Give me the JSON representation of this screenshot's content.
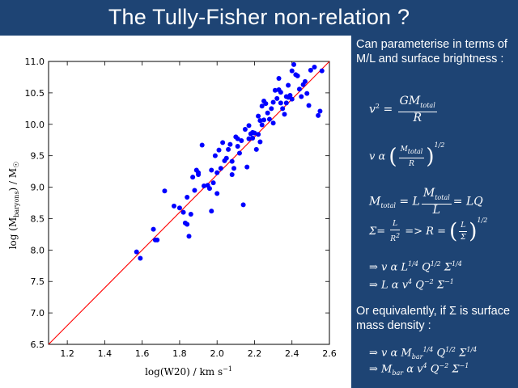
{
  "slide": {
    "title": "The Tully-Fisher non-relation ?"
  },
  "text": {
    "intro": "Can parameterise in terms of M/L and surface brightness :",
    "or_equiv": "Or equivalently, if Σ is surface mass density :"
  },
  "equations": {
    "eq1_lhs": "v",
    "eq1_num": "GM",
    "eq1_num_sub": "total",
    "eq1_den": "R",
    "eq2_lhs": "v α",
    "eq2_num": "M",
    "eq2_num_sub": "total",
    "eq2_den": "R",
    "eq2_exp_num": "1",
    "eq2_exp_den": "2",
    "eq3_lhs": "M",
    "eq3_lhs_sub": "total",
    "eq3_mid": "= L",
    "eq3_num": "M",
    "eq3_num_sub": "total",
    "eq3_den": "L",
    "eq3_rhs": "= LQ",
    "eq4_lhs": "Σ=",
    "eq4_num": "L",
    "eq4_den": "R",
    "eq4_mid": "=> R =",
    "eq4_inner_num": "L",
    "eq4_inner_den": "Σ",
    "eq4_exp_num": "1",
    "eq4_exp_den": "2",
    "eq5": "⇒ v α L",
    "eq5_L_exp": "1/4",
    "eq5_Q": "Q",
    "eq5_Q_exp": "1/2",
    "eq5_S": "Σ",
    "eq5_S_exp": "1/4",
    "eq6": "⇒ L α v",
    "eq6_v_exp": "4",
    "eq6_Q": "Q",
    "eq6_Q_exp": "−2",
    "eq6_S": "Σ",
    "eq6_S_exp": "−1",
    "eq7": "⇒ v α M",
    "eq7_sub": "bar",
    "eq7_M_exp": "1/4",
    "eq7_Q": "Q",
    "eq7_Q_exp": "1/2",
    "eq7_S": "Σ",
    "eq7_S_exp": "1/4",
    "eq8": "⇒  M",
    "eq8_sub": "bar",
    "eq8_mid": "α v",
    "eq8_v_exp": "4",
    "eq8_Q": "Q",
    "eq8_Q_exp": "−2",
    "eq8_S": "Σ",
    "eq8_S_exp": "−1"
  },
  "colors": {
    "background": "#1e4474",
    "points": "#0000ff",
    "fit_line": "#ff0000"
  },
  "chart_data": {
    "type": "scatter",
    "title": "",
    "xlabel": "log(W20) / km s⁻¹",
    "ylabel": "log (M_baryons) / M_☉",
    "xlim": [
      1.1,
      2.6
    ],
    "ylim": [
      6.5,
      11.0
    ],
    "xticks": [
      "1.2",
      "1.4",
      "1.6",
      "1.8",
      "2.0",
      "2.2",
      "2.4",
      "2.6"
    ],
    "yticks": [
      "6.5",
      "7.0",
      "7.5",
      "8.0",
      "8.5",
      "9.0",
      "9.5",
      "10.0",
      "10.5",
      "11.0"
    ],
    "fit_line": {
      "x": [
        1.1,
        2.6
      ],
      "y": [
        6.5,
        11.0
      ]
    },
    "points": {
      "x": [
        1.57,
        1.59,
        1.66,
        1.67,
        1.68,
        1.72,
        1.77,
        1.8,
        1.82,
        1.83,
        1.84,
        1.84,
        1.85,
        1.86,
        1.87,
        1.88,
        1.89,
        1.9,
        1.9,
        1.92,
        1.93,
        1.95,
        1.96,
        1.97,
        1.97,
        1.98,
        1.99,
        2.0,
        2.0,
        2.01,
        2.02,
        2.03,
        2.04,
        2.05,
        2.06,
        2.07,
        2.08,
        2.08,
        2.09,
        2.1,
        2.11,
        2.11,
        2.12,
        2.13,
        2.14,
        2.15,
        2.16,
        2.17,
        2.17,
        2.18,
        2.19,
        2.19,
        2.2,
        2.21,
        2.22,
        2.22,
        2.23,
        2.23,
        2.24,
        2.24,
        2.25,
        2.25,
        2.26,
        2.27,
        2.28,
        2.29,
        2.3,
        2.3,
        2.31,
        2.32,
        2.33,
        2.33,
        2.34,
        2.34,
        2.35,
        2.36,
        2.37,
        2.37,
        2.38,
        2.38,
        2.39,
        2.4,
        2.4,
        2.41,
        2.42,
        2.43,
        2.44,
        2.45,
        2.46,
        2.47,
        2.48,
        2.49,
        2.5,
        2.52,
        2.54,
        2.55,
        2.56
      ],
      "y": [
        7.97,
        7.87,
        8.33,
        8.16,
        8.16,
        8.94,
        8.7,
        8.67,
        8.6,
        8.43,
        8.84,
        8.41,
        8.22,
        8.57,
        9.16,
        8.95,
        9.27,
        9.23,
        9.2,
        9.67,
        9.02,
        9.03,
        8.98,
        8.62,
        9.27,
        9.07,
        9.5,
        9.23,
        8.9,
        9.59,
        9.3,
        9.71,
        9.42,
        9.46,
        9.6,
        9.68,
        9.41,
        9.2,
        9.3,
        9.8,
        9.77,
        9.65,
        9.54,
        9.74,
        8.72,
        9.92,
        9.32,
        9.77,
        9.98,
        9.85,
        9.78,
        9.87,
        9.86,
        9.6,
        10.13,
        9.84,
        9.72,
        10.06,
        9.99,
        10.29,
        10.37,
        10.07,
        10.33,
        10.18,
        10.08,
        10.25,
        10.35,
        10.02,
        10.54,
        10.41,
        10.73,
        10.55,
        10.34,
        10.51,
        10.25,
        10.16,
        10.34,
        10.44,
        10.43,
        10.62,
        10.46,
        10.4,
        10.85,
        10.95,
        10.79,
        10.77,
        10.56,
        10.44,
        10.63,
        10.68,
        10.49,
        10.3,
        10.86,
        10.91,
        10.14,
        10.21,
        10.85
      ]
    }
  }
}
